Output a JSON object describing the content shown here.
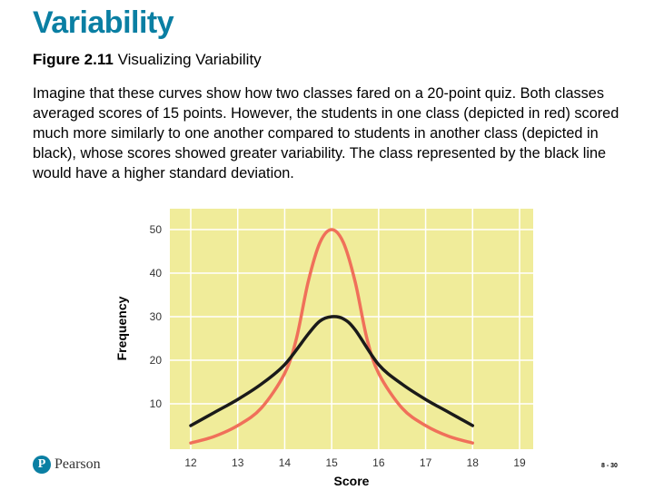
{
  "slide": {
    "title": "Variability",
    "figure_label": "Figure 2.11",
    "figure_caption": "Visualizing Variability",
    "body": "Imagine that these curves show how two classes fared on a 20-point quiz. Both classes averaged scores of 15 points. However, the students in one class (depicted in red) scored much more similarly to one another compared to students in another class (depicted in black), whose scores showed greater variability. The class represented by the black line would have a higher standard deviation.",
    "logo_text": "Pearson",
    "logo_letter": "P",
    "page_number": "8 - 30"
  },
  "colors": {
    "plot_bg": "#f0ec9a",
    "grid": "#ffffff",
    "red_series": "#f0705a",
    "black_series": "#1a1a1a",
    "title": "#0a7fa3"
  },
  "chart_data": {
    "type": "line",
    "xlabel": "Score",
    "ylabel": "Frequency",
    "xlim": [
      12,
      19
    ],
    "ylim": [
      0,
      50
    ],
    "x_ticks": [
      12,
      13,
      14,
      15,
      16,
      17,
      18,
      19
    ],
    "y_ticks": [
      10,
      20,
      30,
      40,
      50
    ],
    "grid": true,
    "series": [
      {
        "color_key": "red_series",
        "x": [
          12,
          12.5,
          13,
          13.5,
          14,
          14.25,
          14.5,
          14.75,
          15,
          15.25,
          15.5,
          15.75,
          16,
          16.5,
          17,
          17.5,
          18
        ],
        "y": [
          1,
          2.5,
          5,
          9,
          17,
          25,
          38,
          47,
          50,
          47,
          38,
          25,
          17,
          9,
          5,
          2.5,
          1
        ]
      },
      {
        "color_key": "black_series",
        "x": [
          12,
          12.5,
          13,
          13.5,
          14,
          14.5,
          14.75,
          15,
          15.25,
          15.5,
          16,
          16.5,
          17,
          17.5,
          18
        ],
        "y": [
          5,
          8,
          11,
          14.5,
          19,
          26,
          29,
          30,
          29.5,
          27,
          19,
          14.5,
          11,
          8,
          5
        ]
      }
    ]
  }
}
